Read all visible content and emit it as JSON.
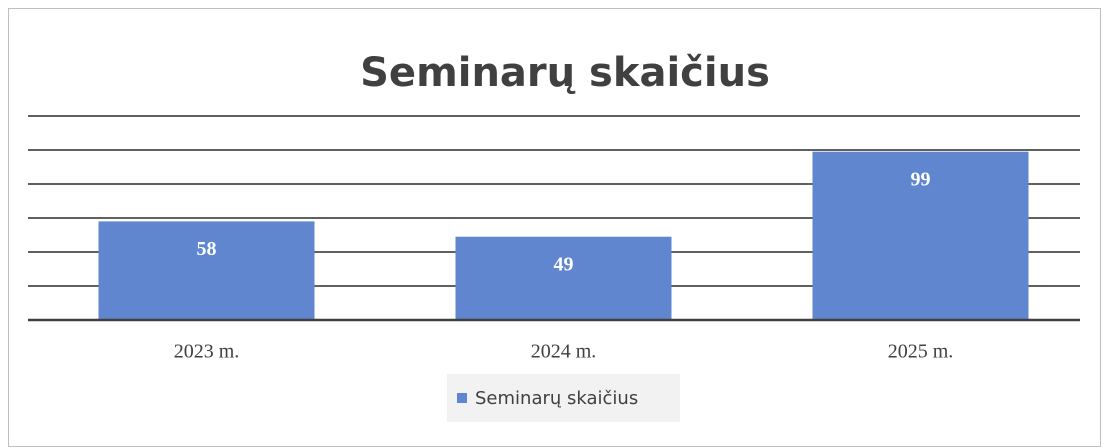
{
  "chart_data": {
    "type": "bar",
    "title": "Seminarų skaičius",
    "categories": [
      "2023 m.",
      "2024 m.",
      "2025 m."
    ],
    "series": [
      {
        "name": "Seminarų skaičius",
        "color": "#5f86cf",
        "values": [
          58,
          49,
          99
        ]
      }
    ],
    "ylim": [
      0,
      120
    ],
    "yticks": [
      0,
      20,
      40,
      60,
      80,
      100,
      120
    ],
    "grid": true,
    "legend": "bottom"
  }
}
